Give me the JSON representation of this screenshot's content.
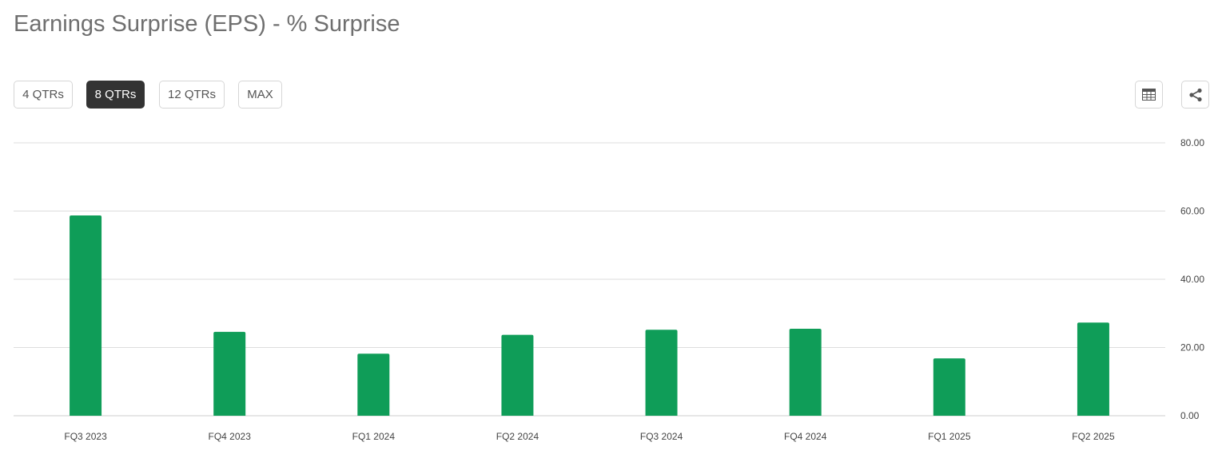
{
  "header": {
    "title": "Earnings Surprise (EPS) - % Surprise"
  },
  "range_tabs": [
    {
      "label": "4 QTRs",
      "active": false
    },
    {
      "label": "8 QTRs",
      "active": true
    },
    {
      "label": "12 QTRs",
      "active": false
    },
    {
      "label": "MAX",
      "active": false
    }
  ],
  "tools": {
    "table_icon": "table-icon",
    "share_icon": "share-icon"
  },
  "colors": {
    "bar": "#0f9d58",
    "grid": "#dddddd",
    "active_tab": "#333333"
  },
  "chart_data": {
    "type": "bar",
    "categories": [
      "FQ3 2023",
      "FQ4 2023",
      "FQ1 2024",
      "FQ2 2024",
      "FQ3 2024",
      "FQ4 2024",
      "FQ1 2025",
      "FQ2 2025"
    ],
    "values": [
      58.7,
      24.6,
      18.2,
      23.7,
      25.2,
      25.5,
      16.8,
      27.3
    ],
    "yticks": [
      "0.00",
      "20.00",
      "40.00",
      "60.00",
      "80.00"
    ],
    "ylim": [
      0,
      80
    ],
    "grid": true,
    "legend": "none"
  }
}
